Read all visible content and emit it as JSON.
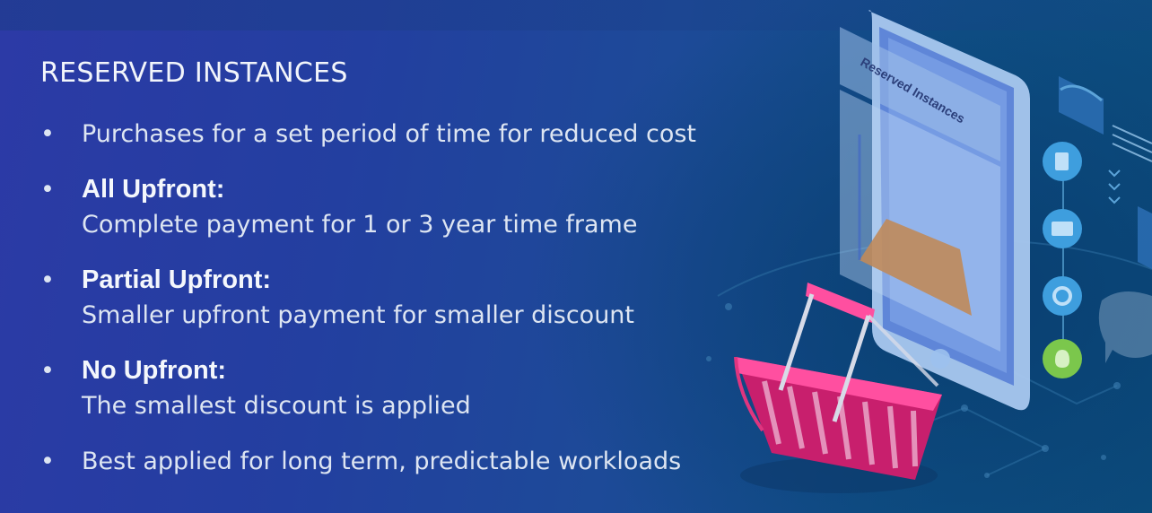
{
  "slide": {
    "title": "RESERVED INSTANCES",
    "bullets": [
      {
        "text": "Purchases for a set period of time for reduced cost"
      },
      {
        "heading": "All Upfront:",
        "text": "Complete payment for 1 or 3 year time frame"
      },
      {
        "heading": "Partial Upfront:",
        "text": "Smaller upfront payment for smaller discount"
      },
      {
        "heading": "No Upfront:",
        "text": "The smallest discount is applied"
      },
      {
        "text": "Best applied for long term, predictable workloads"
      }
    ],
    "bullet_glyph": "•"
  },
  "illustration": {
    "phone_label": "Reserved Instances",
    "icons": [
      "document-icon",
      "card-icon",
      "gear-icon",
      "money-bag-icon",
      "chat-bubble-icon",
      "basket-icon"
    ],
    "colors": {
      "basket": "#e02a7e",
      "phone": "#a8c9f0",
      "icon_green": "#7bc74c",
      "icon_blue": "#3fa0dc"
    }
  }
}
